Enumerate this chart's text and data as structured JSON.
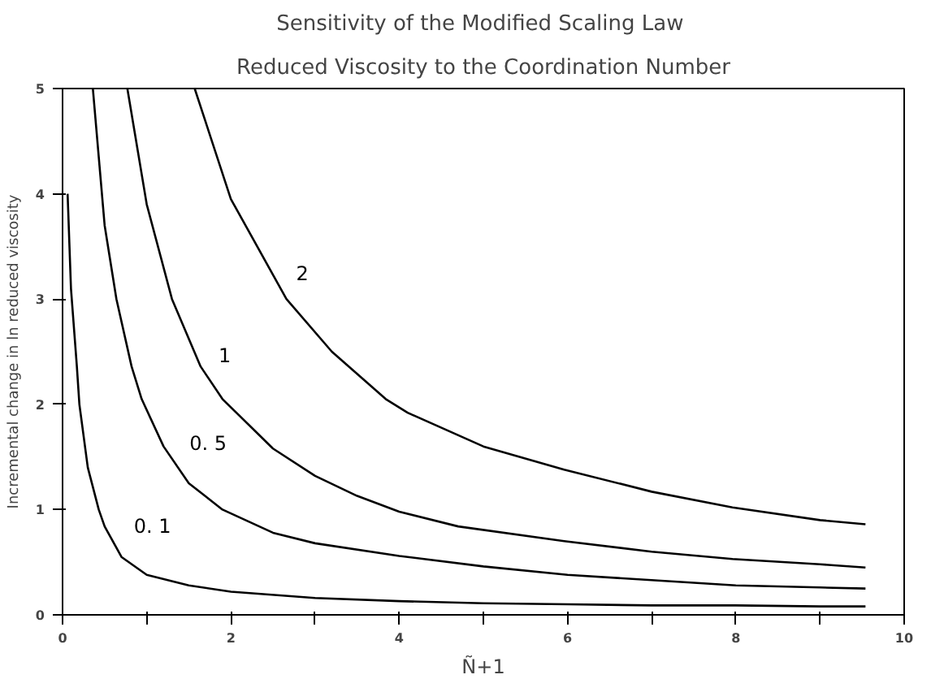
{
  "chart_data": {
    "type": "line",
    "title": "Sensitivity of the Modified  Scaling Law",
    "subtitle": "Reduced Viscosity to the Coordination Number",
    "xlabel": "Ñ+1",
    "ylabel": "Incremental change in ln reduced viscosity",
    "xlim": [
      0,
      10
    ],
    "ylim": [
      0,
      5
    ],
    "xticks": [
      0,
      {
        "value": 1,
        "label": null
      },
      2,
      {
        "value": 3,
        "label": null
      },
      4,
      {
        "value": 5,
        "label": null
      },
      6,
      {
        "value": 7,
        "label": null
      },
      8,
      {
        "value": 9,
        "label": null
      },
      10
    ],
    "yticks": [
      0,
      1,
      2,
      3,
      4,
      5
    ],
    "grid": false,
    "legend": false,
    "marker": "none",
    "line_style": "solid",
    "series": [
      {
        "name": "0. 1",
        "color": "#000000",
        "x": [
          0.06,
          0.1,
          0.17,
          0.2,
          0.3,
          0.43,
          0.5,
          0.7,
          1,
          1.5,
          2,
          3,
          4,
          5,
          6,
          7,
          8,
          9,
          9.54
        ],
        "values": [
          4,
          3.1,
          2.36,
          2,
          1.4,
          1,
          0.84,
          0.55,
          0.38,
          0.28,
          0.22,
          0.16,
          0.13,
          0.11,
          0.1,
          0.09,
          0.09,
          0.08,
          0.08
        ]
      },
      {
        "name": "0. 5",
        "color": "#000000",
        "x": [
          0.36,
          0.5,
          0.64,
          0.82,
          0.94,
          1.2,
          1.5,
          1.9,
          2.5,
          3,
          4,
          5,
          6,
          7,
          8,
          9,
          9.54
        ],
        "values": [
          5,
          3.7,
          3,
          2.36,
          2.05,
          1.6,
          1.25,
          1,
          0.78,
          0.68,
          0.56,
          0.46,
          0.38,
          0.33,
          0.28,
          0.26,
          0.25
        ]
      },
      {
        "name": "1",
        "color": "#000000",
        "x": [
          0.77,
          1,
          1.3,
          1.64,
          1.9,
          2.5,
          3,
          3.5,
          4,
          4.7,
          5.96,
          7,
          7.96,
          9,
          9.54
        ],
        "values": [
          5,
          3.9,
          3,
          2.36,
          2.05,
          1.58,
          1.32,
          1.13,
          0.98,
          0.84,
          0.7,
          0.6,
          0.53,
          0.48,
          0.45
        ]
      },
      {
        "name": "2",
        "color": "#000000",
        "x": [
          1.57,
          2,
          2.66,
          3.2,
          3.84,
          4.1,
          5,
          5.96,
          7,
          7.96,
          9,
          9.54
        ],
        "values": [
          5,
          3.95,
          3,
          2.5,
          2.05,
          1.92,
          1.6,
          1.38,
          1.17,
          1.02,
          0.9,
          0.86
        ]
      }
    ]
  }
}
